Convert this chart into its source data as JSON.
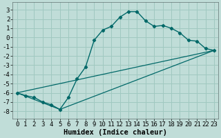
{
  "title": "",
  "xlabel": "Humidex (Indice chaleur)",
  "ylabel": "",
  "bg_color": "#c0ddd8",
  "grid_color": "#a0c8c0",
  "line_color": "#006868",
  "xlim": [
    -0.5,
    23.5
  ],
  "ylim": [
    -8.8,
    3.8
  ],
  "xticks": [
    0,
    1,
    2,
    3,
    4,
    5,
    6,
    7,
    8,
    9,
    10,
    11,
    12,
    13,
    14,
    15,
    16,
    17,
    18,
    19,
    20,
    21,
    22,
    23
  ],
  "yticks": [
    -8,
    -7,
    -6,
    -5,
    -4,
    -3,
    -2,
    -1,
    0,
    1,
    2,
    3
  ],
  "series1_x": [
    0,
    1,
    2,
    3,
    4,
    5,
    6,
    7,
    8,
    9,
    10,
    11,
    12,
    13,
    14,
    15,
    16,
    17,
    18,
    19,
    20,
    21,
    22,
    23
  ],
  "series1_y": [
    -6.0,
    -6.3,
    -6.5,
    -7.0,
    -7.3,
    -7.8,
    -6.5,
    -4.5,
    -3.2,
    -0.3,
    0.8,
    1.2,
    2.2,
    2.8,
    2.8,
    1.8,
    1.2,
    1.3,
    1.0,
    0.5,
    -0.3,
    -0.4,
    -1.2,
    -1.4
  ],
  "series2_x": [
    0,
    23
  ],
  "series2_y": [
    -6.0,
    -1.4
  ],
  "series3_x": [
    0,
    5,
    23
  ],
  "series3_y": [
    -6.0,
    -7.8,
    -1.4
  ],
  "tick_fontsize": 6.5,
  "xlabel_fontsize": 7.5
}
